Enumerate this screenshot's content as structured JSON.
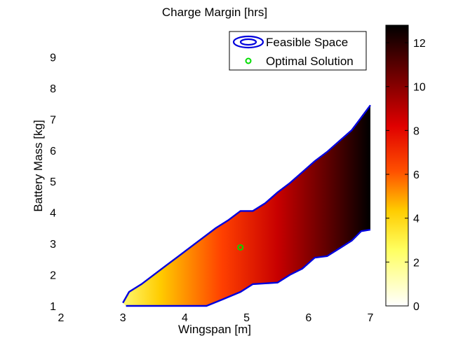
{
  "chart_data": {
    "type": "heatmap",
    "title": "Charge Margin [hrs]",
    "xlabel": "Wingspan [m]",
    "ylabel": "Battery Mass [kg]",
    "xlim": [
      2,
      7
    ],
    "ylim": [
      1,
      10
    ],
    "xticks": [
      2,
      3,
      4,
      5,
      6,
      7
    ],
    "yticks": [
      1,
      2,
      3,
      4,
      5,
      6,
      7,
      8,
      9
    ],
    "colormap": "hot (reversed)",
    "colorbar": {
      "range": [
        0,
        12.8
      ],
      "ticks": [
        0,
        2,
        4,
        6,
        8,
        10,
        12
      ]
    },
    "feasible_region": {
      "upper_boundary": [
        [
          3.0,
          1.1
        ],
        [
          3.1,
          1.45
        ],
        [
          3.3,
          1.7
        ],
        [
          3.5,
          2.0
        ],
        [
          3.7,
          2.3
        ],
        [
          3.9,
          2.6
        ],
        [
          4.1,
          2.9
        ],
        [
          4.3,
          3.2
        ],
        [
          4.5,
          3.5
        ],
        [
          4.7,
          3.75
        ],
        [
          4.9,
          4.05
        ],
        [
          5.1,
          4.05
        ],
        [
          5.3,
          4.3
        ],
        [
          5.5,
          4.65
        ],
        [
          5.7,
          4.95
        ],
        [
          5.9,
          5.3
        ],
        [
          6.1,
          5.65
        ],
        [
          6.3,
          5.95
        ],
        [
          6.5,
          6.3
        ],
        [
          6.7,
          6.65
        ],
        [
          6.85,
          7.05
        ],
        [
          7.0,
          7.45
        ]
      ],
      "lower_boundary": [
        [
          3.05,
          1.0
        ],
        [
          4.35,
          1.0
        ],
        [
          4.6,
          1.2
        ],
        [
          4.9,
          1.45
        ],
        [
          5.1,
          1.7
        ],
        [
          5.5,
          1.75
        ],
        [
          5.7,
          2.0
        ],
        [
          5.9,
          2.2
        ],
        [
          6.1,
          2.55
        ],
        [
          6.3,
          2.6
        ],
        [
          6.5,
          2.85
        ],
        [
          6.7,
          3.1
        ],
        [
          6.85,
          3.4
        ],
        [
          7.0,
          3.45
        ]
      ],
      "color": "#0000dd"
    },
    "optimal_solution": {
      "x": 4.9,
      "y": 2.88,
      "color": "#00dd00"
    },
    "legend": {
      "placement": "top-right",
      "entries": [
        {
          "label": "Feasible Space",
          "marker": "contour",
          "color": "#0000dd"
        },
        {
          "label": "Optimal Solution",
          "marker": "circle",
          "color": "#00dd00"
        }
      ]
    },
    "grid": false
  }
}
